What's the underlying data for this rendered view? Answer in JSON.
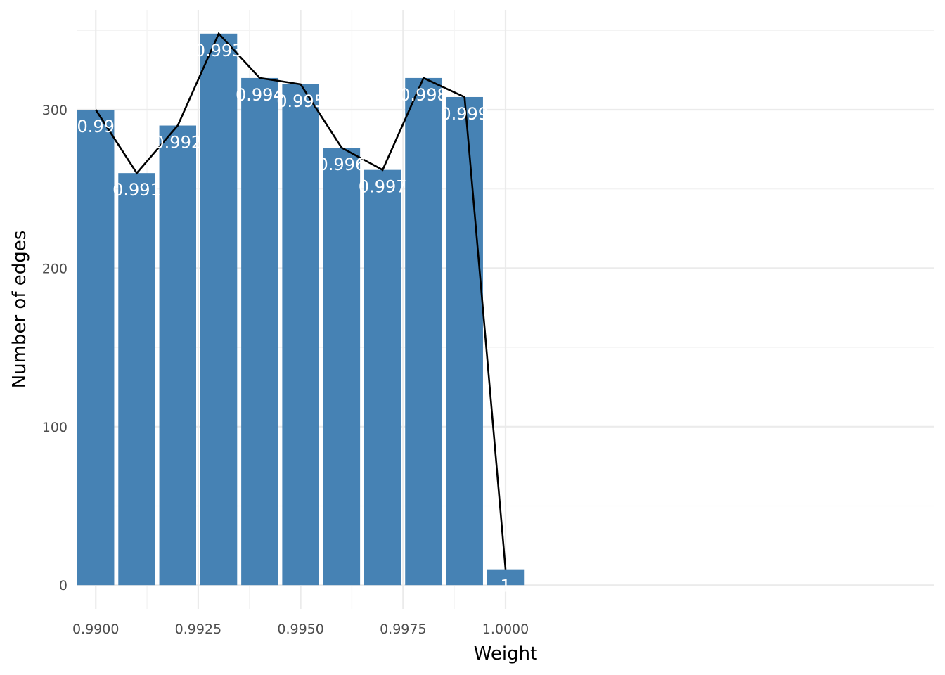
{
  "chart_data": {
    "type": "bar",
    "title": "",
    "xlabel": "Weight",
    "ylabel": "Number of edges",
    "x_ticks": [
      "0.9900",
      "0.9925",
      "0.9950",
      "0.9975",
      "1.0000"
    ],
    "x_tick_values": [
      0.99,
      0.9925,
      0.995,
      0.9975,
      1.0
    ],
    "y_ticks": [
      "0",
      "100",
      "200",
      "300"
    ],
    "y_tick_values": [
      0,
      100,
      200,
      300
    ],
    "xlim": [
      0.98955,
      1.01045
    ],
    "ylim": [
      -15,
      363
    ],
    "grid": true,
    "colors": {
      "bar": "#4682b4",
      "line": "#000000",
      "label": "#ffffff"
    },
    "x": [
      0.99,
      0.991,
      0.992,
      0.993,
      0.994,
      0.995,
      0.996,
      0.997,
      0.998,
      0.999,
      1.0
    ],
    "values": [
      300,
      260,
      290,
      348,
      320,
      316,
      276,
      262,
      320,
      308,
      10
    ],
    "labels": [
      "0.99",
      "0.991",
      "0.992",
      "0.993",
      "0.994",
      "0.995",
      "0.996",
      "0.997",
      "0.998",
      "0.999",
      "1"
    ],
    "bar_width": 0.0009
  }
}
